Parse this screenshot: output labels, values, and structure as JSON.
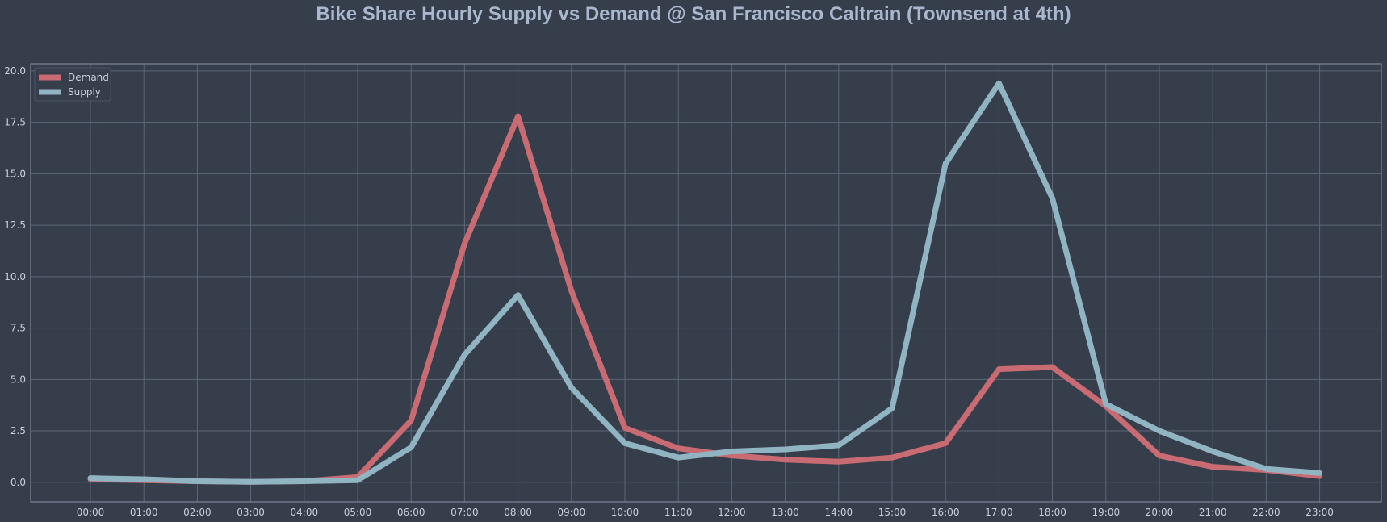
{
  "chart_data": {
    "type": "line",
    "title": "Bike Share Hourly Supply vs Demand @ San Francisco Caltrain (Townsend at 4th)",
    "xlabel": "",
    "ylabel": "",
    "categories": [
      "00:00",
      "01:00",
      "02:00",
      "03:00",
      "04:00",
      "05:00",
      "06:00",
      "07:00",
      "08:00",
      "09:00",
      "10:00",
      "11:00",
      "12:00",
      "13:00",
      "14:00",
      "15:00",
      "16:00",
      "17:00",
      "18:00",
      "19:00",
      "20:00",
      "21:00",
      "22:00",
      "23:00"
    ],
    "series": [
      {
        "name": "Demand",
        "color": "#c96b72",
        "values": [
          0.15,
          0.1,
          0.05,
          0.02,
          0.05,
          0.25,
          3.0,
          11.6,
          17.8,
          9.3,
          2.65,
          1.65,
          1.3,
          1.1,
          1.0,
          1.2,
          1.9,
          5.5,
          5.6,
          3.7,
          1.3,
          0.75,
          0.6,
          0.3
        ]
      },
      {
        "name": "Supply",
        "color": "#91b4c2",
        "values": [
          0.2,
          0.15,
          0.05,
          0.02,
          0.05,
          0.1,
          1.7,
          6.2,
          9.1,
          4.6,
          1.9,
          1.2,
          1.5,
          1.6,
          1.8,
          3.6,
          15.5,
          19.4,
          13.8,
          3.8,
          2.5,
          1.5,
          0.65,
          0.45
        ]
      }
    ],
    "yticks": [
      0.0,
      2.5,
      5.0,
      7.5,
      10.0,
      12.5,
      15.0,
      17.5,
      20.0
    ],
    "ytick_labels": [
      "0.0",
      "2.5",
      "5.0",
      "7.5",
      "10.0",
      "12.5",
      "15.0",
      "17.5",
      "20.0"
    ],
    "ylim": [
      -0.95,
      20.35
    ],
    "grid": true,
    "legend_position": "top-left",
    "colors": {
      "background": "#363d4b",
      "grid": "#5d6778",
      "axes_border": "#8b94a8",
      "text": "#c7cfdc",
      "title": "#aab8cf"
    }
  }
}
